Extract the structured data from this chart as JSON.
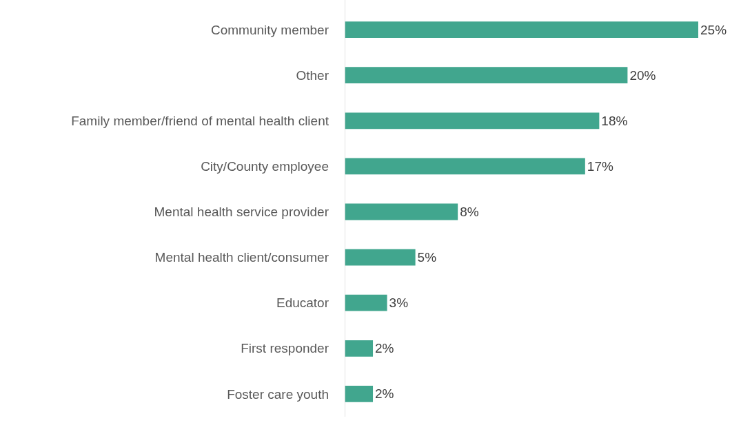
{
  "chart_data": {
    "type": "bar",
    "orientation": "horizontal",
    "categories": [
      "Community member",
      "Other",
      "Family member/friend of mental health client",
      "City/County employee",
      "Mental health service provider",
      "Mental health client/consumer",
      "Educator",
      "First responder",
      "Foster care youth"
    ],
    "values": [
      25,
      20,
      18,
      17,
      8,
      5,
      3,
      2,
      2
    ],
    "value_labels": [
      "25%",
      "20%",
      "18%",
      "17%",
      "8%",
      "5%",
      "3%",
      "2%",
      "2%"
    ],
    "color": "#41a68e",
    "xlim": [
      0,
      25
    ],
    "tick_labels": "y"
  }
}
